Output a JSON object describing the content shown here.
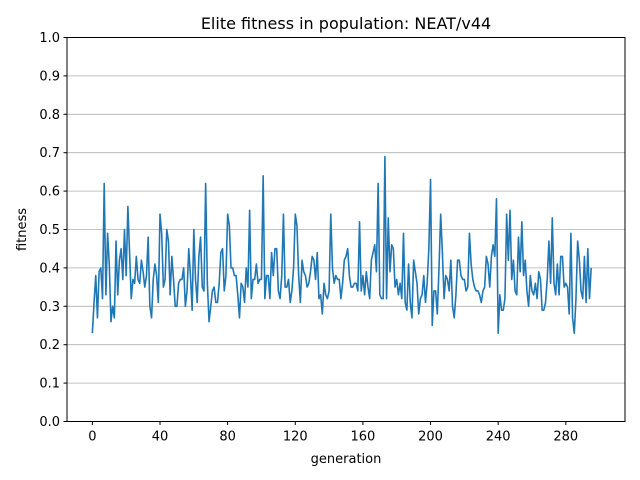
{
  "chart_data": {
    "type": "line",
    "title": "Elite fitness in population: NEAT/v44",
    "xlabel": "generation",
    "ylabel": "fitness",
    "xlim": [
      -15,
      315
    ],
    "ylim": [
      0.0,
      1.0
    ],
    "xticks": [
      0,
      40,
      80,
      120,
      160,
      200,
      240,
      280
    ],
    "yticks": [
      "0.0",
      "0.1",
      "0.2",
      "0.3",
      "0.4",
      "0.5",
      "0.6",
      "0.7",
      "0.8",
      "0.9",
      "1.0"
    ],
    "grid": "horizontal",
    "legend": "none",
    "series": [
      {
        "color": "#1f77b4",
        "x_start": 0,
        "x_step": 1,
        "values": [
          0.23,
          0.31,
          0.38,
          0.27,
          0.39,
          0.4,
          0.32,
          0.62,
          0.33,
          0.49,
          0.41,
          0.26,
          0.3,
          0.27,
          0.47,
          0.33,
          0.42,
          0.45,
          0.37,
          0.5,
          0.38,
          0.56,
          0.44,
          0.32,
          0.37,
          0.36,
          0.43,
          0.37,
          0.36,
          0.42,
          0.39,
          0.35,
          0.38,
          0.48,
          0.3,
          0.27,
          0.37,
          0.41,
          0.38,
          0.31,
          0.54,
          0.49,
          0.35,
          0.37,
          0.5,
          0.47,
          0.33,
          0.43,
          0.37,
          0.3,
          0.3,
          0.36,
          0.37,
          0.37,
          0.4,
          0.3,
          0.34,
          0.45,
          0.38,
          0.29,
          0.5,
          0.37,
          0.31,
          0.43,
          0.48,
          0.35,
          0.34,
          0.62,
          0.36,
          0.26,
          0.3,
          0.34,
          0.35,
          0.31,
          0.31,
          0.36,
          0.44,
          0.45,
          0.34,
          0.38,
          0.54,
          0.51,
          0.4,
          0.4,
          0.38,
          0.38,
          0.33,
          0.27,
          0.36,
          0.35,
          0.31,
          0.4,
          0.35,
          0.55,
          0.32,
          0.37,
          0.37,
          0.41,
          0.36,
          0.37,
          0.37,
          0.64,
          0.32,
          0.38,
          0.38,
          0.32,
          0.44,
          0.38,
          0.45,
          0.45,
          0.34,
          0.32,
          0.38,
          0.54,
          0.35,
          0.35,
          0.37,
          0.31,
          0.34,
          0.4,
          0.54,
          0.51,
          0.38,
          0.31,
          0.42,
          0.39,
          0.38,
          0.35,
          0.36,
          0.39,
          0.43,
          0.42,
          0.37,
          0.44,
          0.32,
          0.33,
          0.28,
          0.36,
          0.33,
          0.32,
          0.34,
          0.54,
          0.4,
          0.36,
          0.38,
          0.37,
          0.37,
          0.32,
          0.36,
          0.42,
          0.43,
          0.45,
          0.38,
          0.35,
          0.35,
          0.36,
          0.36,
          0.34,
          0.52,
          0.34,
          0.38,
          0.33,
          0.39,
          0.35,
          0.32,
          0.42,
          0.44,
          0.46,
          0.39,
          0.62,
          0.33,
          0.32,
          0.32,
          0.69,
          0.32,
          0.53,
          0.39,
          0.46,
          0.45,
          0.35,
          0.37,
          0.33,
          0.36,
          0.32,
          0.49,
          0.31,
          0.29,
          0.41,
          0.31,
          0.27,
          0.42,
          0.39,
          0.36,
          0.28,
          0.32,
          0.33,
          0.38,
          0.31,
          0.36,
          0.45,
          0.63,
          0.25,
          0.34,
          0.34,
          0.28,
          0.4,
          0.54,
          0.44,
          0.32,
          0.38,
          0.37,
          0.34,
          0.42,
          0.3,
          0.27,
          0.33,
          0.42,
          0.42,
          0.38,
          0.37,
          0.37,
          0.34,
          0.35,
          0.49,
          0.41,
          0.37,
          0.35,
          0.34,
          0.34,
          0.33,
          0.31,
          0.34,
          0.35,
          0.43,
          0.41,
          0.35,
          0.43,
          0.46,
          0.43,
          0.58,
          0.23,
          0.33,
          0.29,
          0.29,
          0.32,
          0.54,
          0.42,
          0.55,
          0.37,
          0.42,
          0.34,
          0.33,
          0.48,
          0.39,
          0.52,
          0.38,
          0.42,
          0.34,
          0.3,
          0.38,
          0.34,
          0.33,
          0.36,
          0.32,
          0.39,
          0.37,
          0.29,
          0.29,
          0.31,
          0.37,
          0.47,
          0.36,
          0.53,
          0.36,
          0.33,
          0.41,
          0.33,
          0.43,
          0.43,
          0.35,
          0.36,
          0.35,
          0.28,
          0.49,
          0.27,
          0.23,
          0.32,
          0.47,
          0.42,
          0.34,
          0.32,
          0.43,
          0.31,
          0.45,
          0.32,
          0.4
        ]
      }
    ]
  }
}
